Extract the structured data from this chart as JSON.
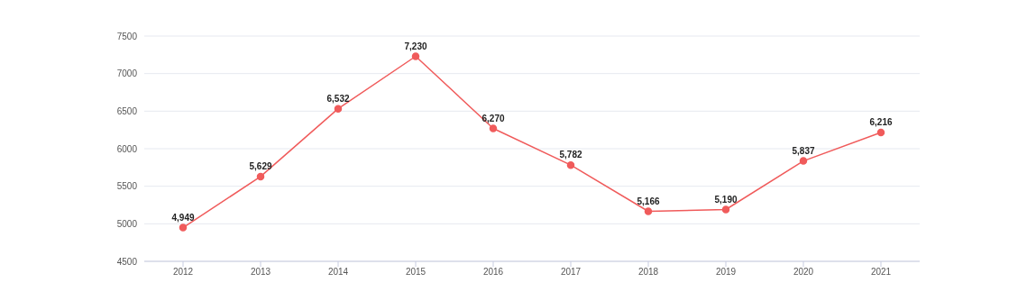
{
  "chart_data": {
    "type": "line",
    "categories": [
      "2012",
      "2013",
      "2014",
      "2015",
      "2016",
      "2017",
      "2018",
      "2019",
      "2020",
      "2021"
    ],
    "series": [
      {
        "color": "#f05b5b",
        "values": [
          4949,
          5629,
          6532,
          7230,
          6270,
          5782,
          5166,
          5190,
          5837,
          6216
        ],
        "value_labels": [
          "4,949",
          "5,629",
          "6,532",
          "7,230",
          "6,270",
          "5,782",
          "5,166",
          "5,190",
          "5,837",
          "6,216"
        ]
      }
    ],
    "ylim": [
      4500,
      7500
    ],
    "yticks": [
      4500,
      5000,
      5500,
      6000,
      6500,
      7000,
      7500
    ],
    "grid": "y",
    "legend": false,
    "marker": "circle",
    "line_style": "solid"
  }
}
